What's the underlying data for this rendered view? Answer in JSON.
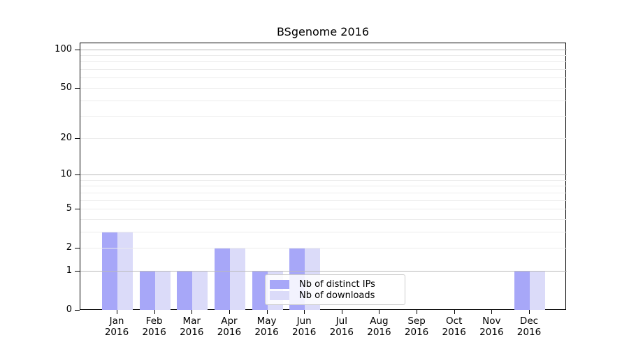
{
  "title": "BSgenome 2016",
  "colors": {
    "distinct_ips_bar": "#a7a7f8",
    "downloads_bar": "#dbdbf9",
    "major_grid": "#b9b9b9",
    "minor_grid": "#ececec",
    "axis": "#000000",
    "legend_border": "#cccccc"
  },
  "chart_data": {
    "type": "bar",
    "title": "BSgenome 2016",
    "categories": [
      "Jan",
      "Feb",
      "Mar",
      "Apr",
      "May",
      "Jun",
      "Jul",
      "Aug",
      "Sep",
      "Oct",
      "Nov",
      "Dec"
    ],
    "x_year_label": "2016",
    "series": [
      {
        "name": "Nb of distinct IPs",
        "color": "#a7a7f8",
        "values": [
          3,
          1,
          1,
          2,
          1,
          2,
          0,
          0,
          0,
          0,
          0,
          1
        ]
      },
      {
        "name": "Nb of downloads",
        "color": "#dbdbf9",
        "values": [
          3,
          1,
          1,
          2,
          1,
          2,
          0,
          0,
          0,
          0,
          0,
          1
        ]
      }
    ],
    "xlabel": "",
    "ylabel": "",
    "y_axis": {
      "scale": "log1p",
      "tick_values": [
        0,
        1,
        2,
        5,
        10,
        20,
        50,
        100
      ],
      "ylim": [
        0,
        113
      ]
    },
    "grid": {
      "major_values": [
        1,
        10,
        100
      ],
      "minor_values": [
        2,
        3,
        4,
        5,
        6,
        7,
        8,
        9,
        20,
        30,
        40,
        50,
        60,
        70,
        80,
        90
      ],
      "orientation": "horizontal",
      "drawn_over_bars": true
    },
    "legend": {
      "position": "lower-center-inside",
      "entries": [
        "Nb of distinct IPs",
        "Nb of downloads"
      ]
    }
  }
}
